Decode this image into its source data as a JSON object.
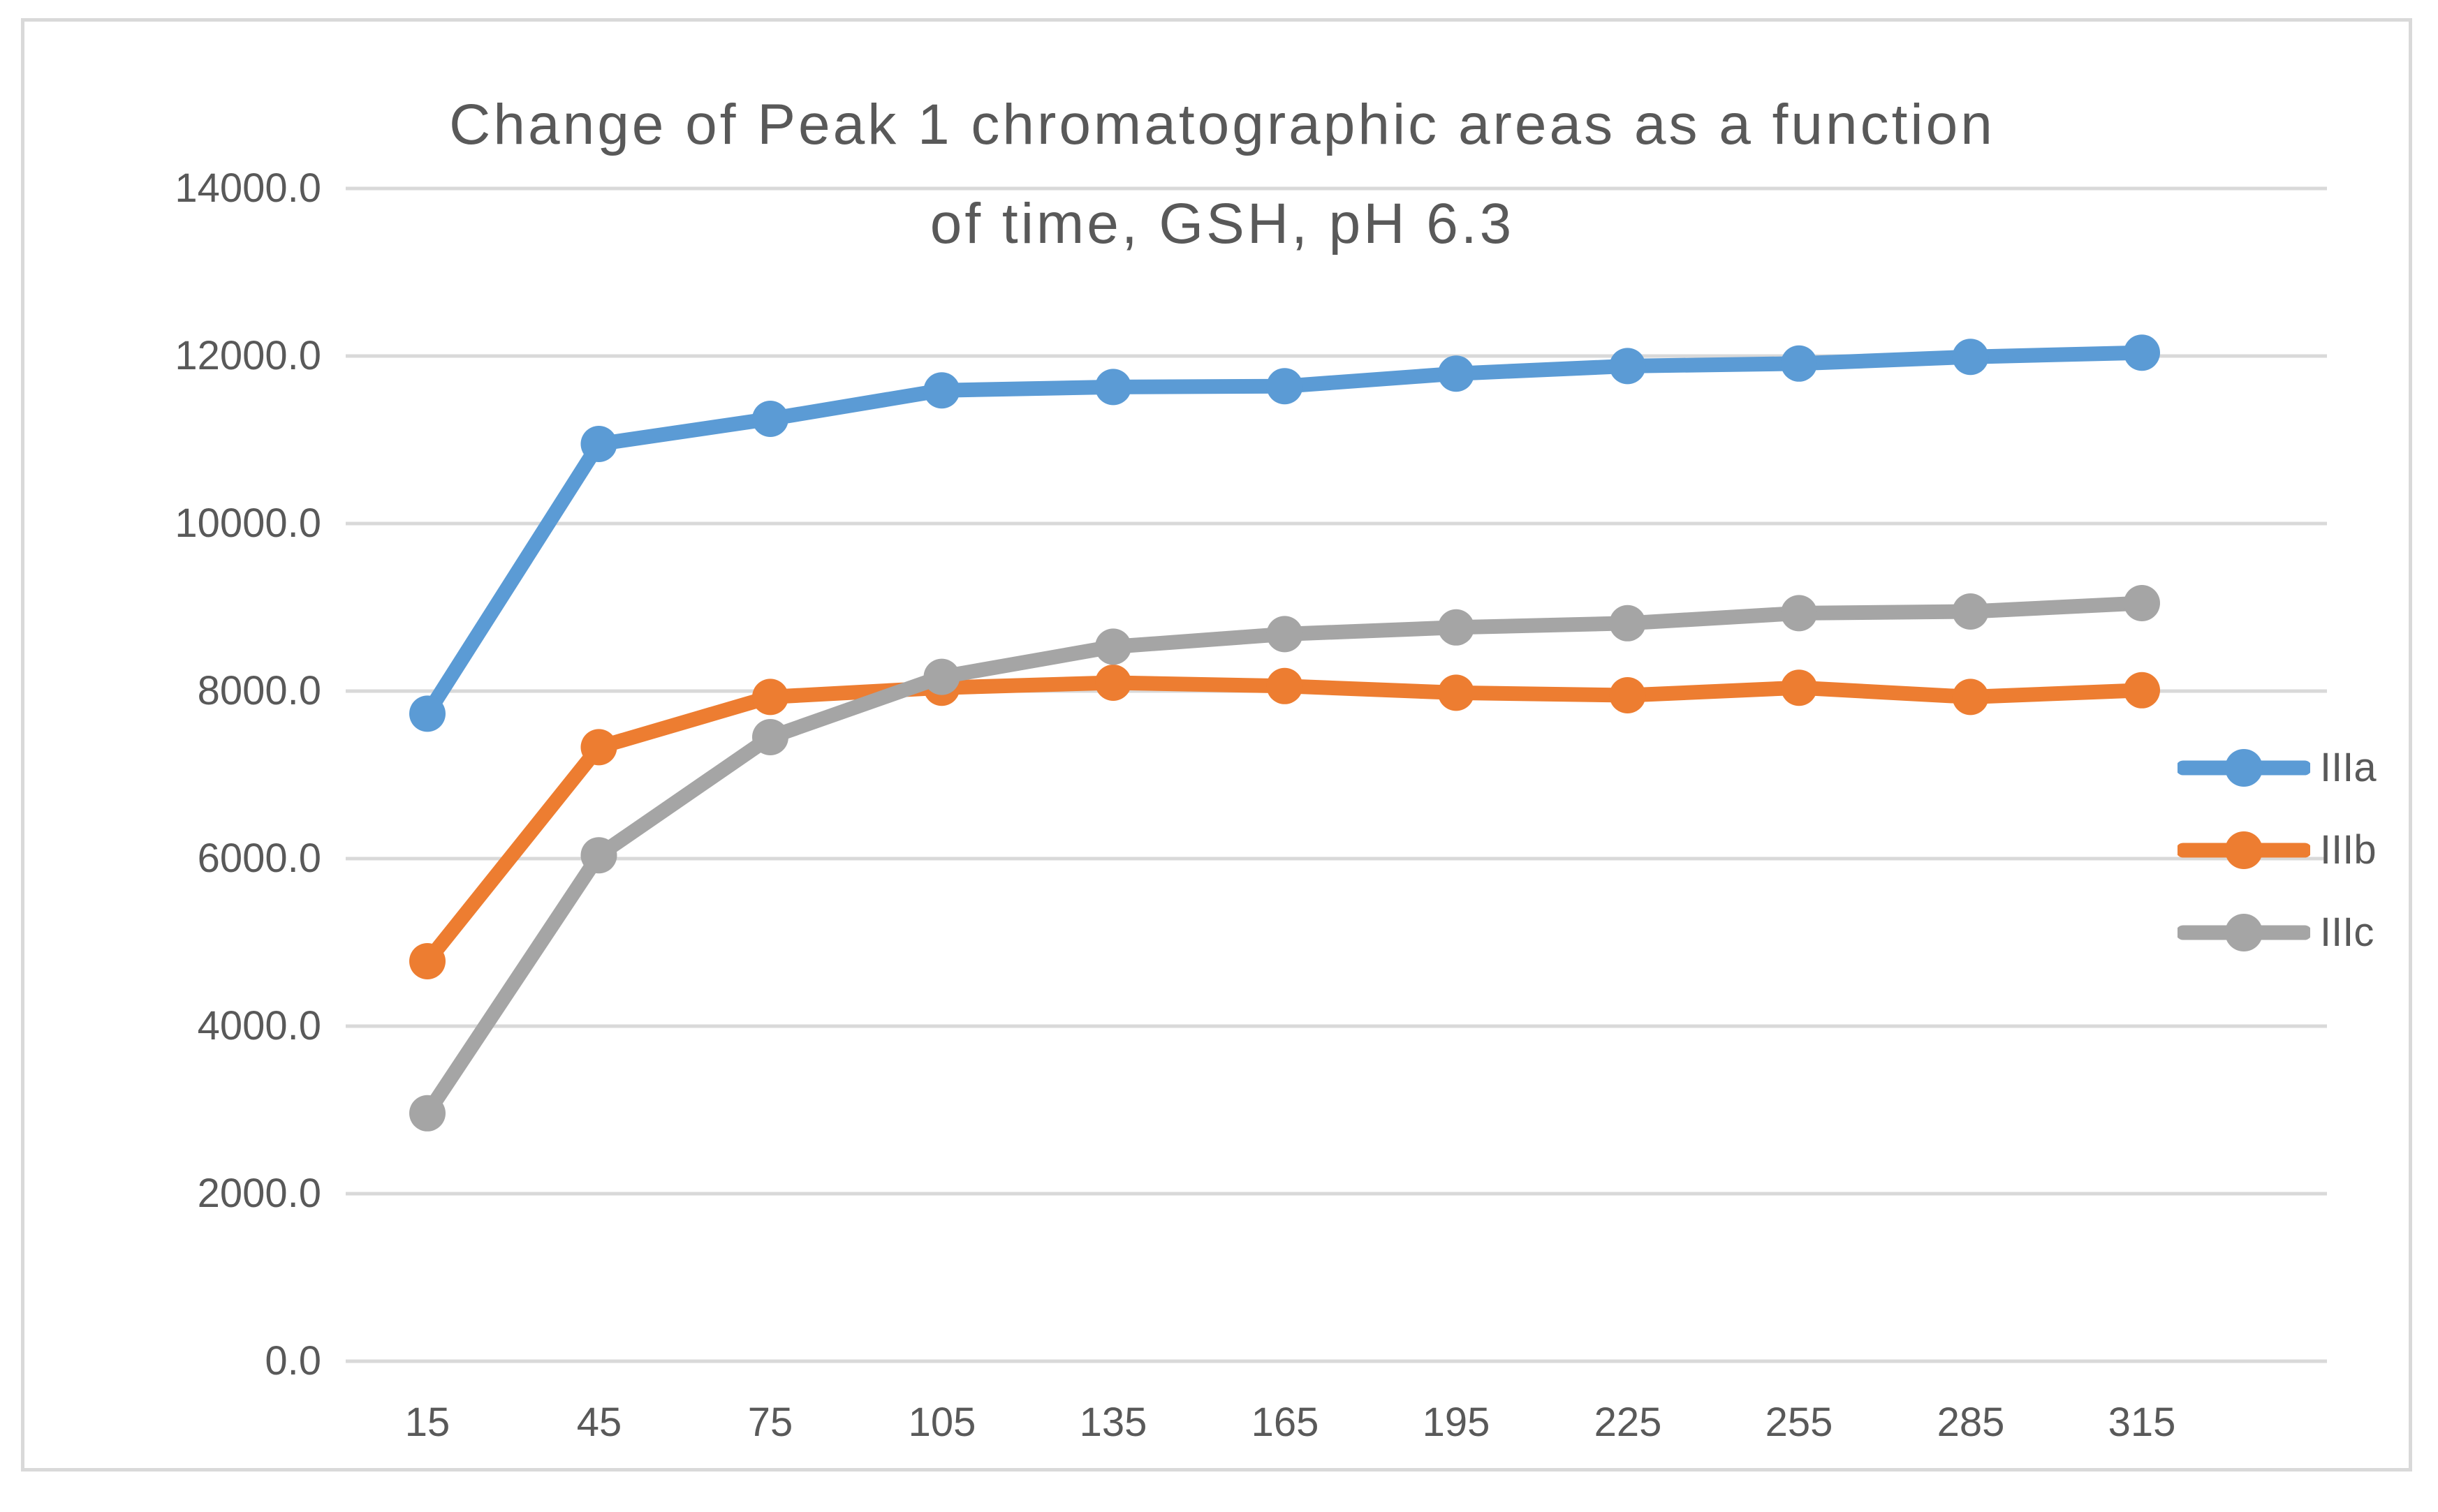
{
  "chart_data": {
    "type": "line",
    "title": "Change of Peak 1 chromatographic areas as a function of time, GSH, pH 6.3",
    "title_line1": "Change of Peak 1 chromatographic areas as a function",
    "title_line2": "of time, GSH, pH 6.3",
    "xlabel": "",
    "ylabel": "",
    "x": [
      15,
      45,
      75,
      105,
      135,
      165,
      195,
      225,
      255,
      285,
      315
    ],
    "xtick_labels": [
      "15",
      "45",
      "75",
      "105",
      "135",
      "165",
      "195",
      "225",
      "255",
      "285",
      "315"
    ],
    "ytick_labels": [
      "14000.0",
      "12000.0",
      "10000.0",
      "8000.0",
      "6000.0",
      "4000.0",
      "2000.0",
      "0.0"
    ],
    "ylim": [
      0,
      14000
    ],
    "ytick_step": 2000,
    "grid": true,
    "legend_position": "right",
    "marker": "circle",
    "series": [
      {
        "name": "IIIa",
        "color": "#5B9BD5",
        "values": [
          7730,
          10950,
          11250,
          11590,
          11630,
          11640,
          11790,
          11880,
          11910,
          11990,
          12040
        ]
      },
      {
        "name": "IIIb",
        "color": "#ED7D31",
        "values": [
          4775,
          7330,
          7930,
          8040,
          8100,
          8060,
          7980,
          7950,
          8040,
          7930,
          8010
        ]
      },
      {
        "name": "IIIc",
        "color": "#A5A5A5",
        "values": [
          2960,
          6040,
          7450,
          8170,
          8530,
          8680,
          8760,
          8810,
          8930,
          8950,
          9050
        ]
      }
    ],
    "colors": {
      "grid": "#D9D9D9",
      "frame_border": "#D9D9D9",
      "text": "#595959"
    }
  }
}
